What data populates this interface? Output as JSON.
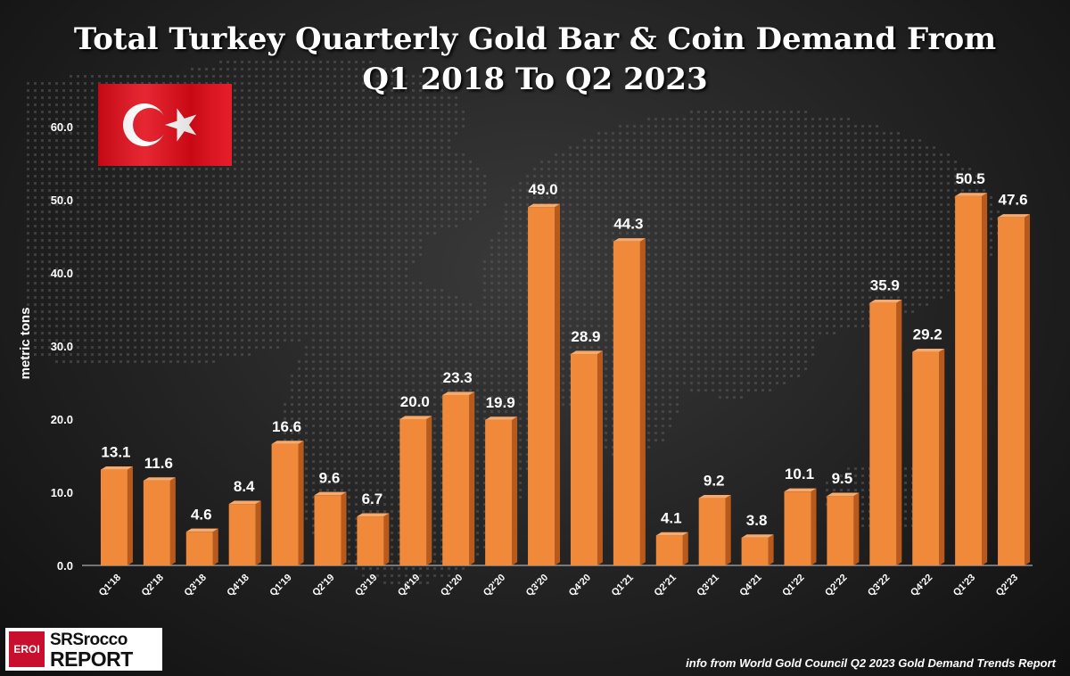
{
  "colors": {
    "bar": "#f08a3a",
    "bar_side": "#b85a1c",
    "bar_top": "#f7aa6c",
    "text": "#ffffff",
    "flag_red": "#e30a17"
  },
  "logo": {
    "badge": "EROI",
    "line1": "SRSrocco",
    "line2": "REPORT"
  },
  "source_note": "info from World Gold Council Q2 2023 Gold Demand Trends Report",
  "chart_data": {
    "type": "bar",
    "title": "Total Turkey Quarterly Gold Bar & Coin Demand From Q1 2018 To Q2 2023",
    "title_lines": [
      "Total Turkey Quarterly Gold Bar & Coin Demand From",
      "Q1 2018 To Q2 2023"
    ],
    "xlabel": "",
    "ylabel": "metric tons",
    "ylim": [
      0,
      60
    ],
    "yticks": [
      "0.0",
      "10.0",
      "20.0",
      "30.0",
      "40.0",
      "50.0",
      "60.0"
    ],
    "categories": [
      "Q1'18",
      "Q2'18",
      "Q3'18",
      "Q4'18",
      "Q1'19",
      "Q2'19",
      "Q3'19",
      "Q4'19",
      "Q1'20",
      "Q2'20",
      "Q3'20",
      "Q4'20",
      "Q1'21",
      "Q2'21",
      "Q3'21",
      "Q4'21",
      "Q1'22",
      "Q2'22",
      "Q3'22",
      "Q4'22",
      "Q1'23",
      "Q2'23"
    ],
    "values": [
      13.1,
      11.6,
      4.6,
      8.4,
      16.6,
      9.6,
      6.7,
      20.0,
      23.3,
      19.9,
      49.0,
      28.9,
      44.3,
      4.1,
      9.2,
      3.8,
      10.1,
      9.5,
      35.9,
      29.2,
      50.5,
      47.6
    ],
    "data_labels": [
      "13.1",
      "11.6",
      "4.6",
      "8.4",
      "16.6",
      "9.6",
      "6.7",
      "20.0",
      "23.3",
      "19.9",
      "49.0",
      "28.9",
      "44.3",
      "4.1",
      "9.2",
      "3.8",
      "10.1",
      "9.5",
      "35.9",
      "29.2",
      "50.5",
      "47.6"
    ]
  }
}
